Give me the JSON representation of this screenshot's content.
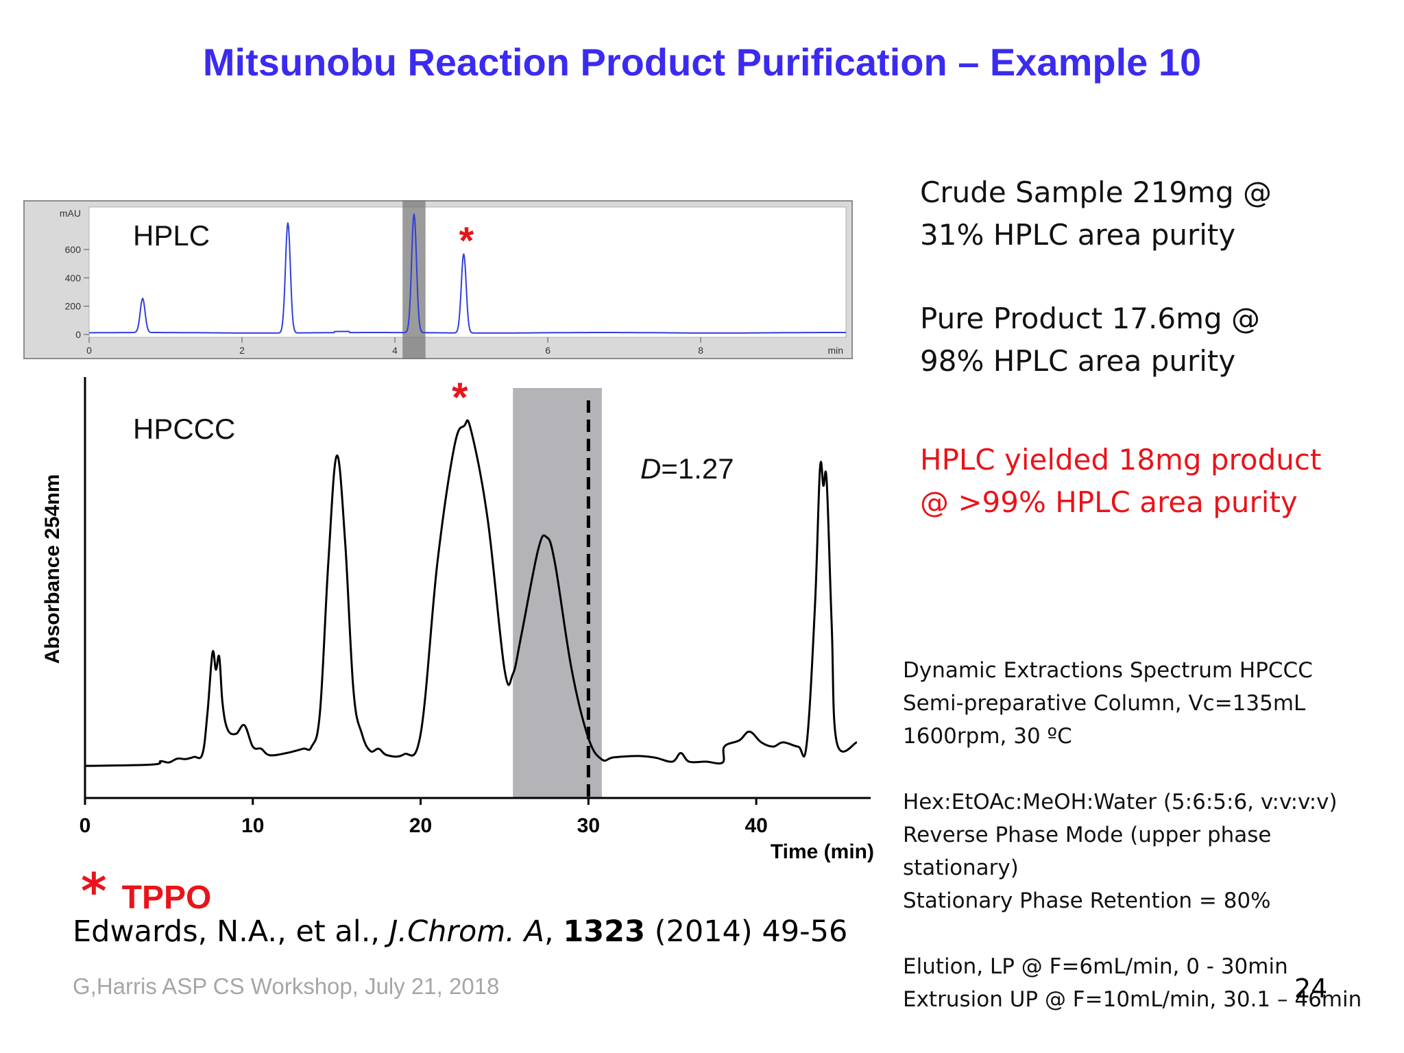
{
  "title": "Mitsunobu Reaction Product Purification – Example 10",
  "summary": {
    "crude_line1": "Crude Sample 219mg @",
    "crude_line2": "31% HPLC area purity",
    "pure_line1": "Pure Product 17.6mg @",
    "pure_line2": "98% HPLC area purity",
    "hplc_line1": "HPLC yielded 18mg product",
    "hplc_line2": "@ >99% HPLC area purity"
  },
  "conditions": [
    "Dynamic Extractions Spectrum HPCCC",
    "Semi-preparative Column, Vc=135mL",
    "1600rpm, 30 ºC",
    "",
    "Hex:EtOAc:MeOH:Water (5:6:5:6, v:v:v:v)",
    "Reverse Phase Mode (upper phase",
    "stationary)",
    "Stationary Phase Retention = 80%",
    "",
    "Elution, LP @ F=6mL/min, 0 - 30min",
    "Extrusion UP @ F=10mL/min, 30.1 – 46min"
  ],
  "legend": {
    "star": "*",
    "label": "TPPO"
  },
  "citation": {
    "authors": "Edwards, N.A., et al., ",
    "journal": "J.Chrom. A",
    "sep": ", ",
    "volume": "1323",
    "rest": " (2014) 49-56"
  },
  "footer": "G,Harris ASP CS Workshop, July 21, 2018",
  "page_number": "24",
  "colors": {
    "title": "#3b2bf0",
    "highlight": "#e8141a",
    "hplc_trace": "#2f3fd8",
    "shade": "#b3b3b8"
  },
  "chart_data": [
    {
      "type": "line",
      "panel_label": "HPLC",
      "ylabel": "mAU",
      "xlabel": "min",
      "x_ticks": [
        0,
        2,
        4,
        6,
        8
      ],
      "y_ticks": [
        0,
        200,
        400,
        600
      ],
      "xlim": [
        0,
        9.9
      ],
      "ylim": [
        -20,
        900
      ],
      "shaded_region": [
        4.1,
        4.4
      ],
      "tppo_marker_x": 4.9,
      "peaks": [
        {
          "x": 0.7,
          "height": 240
        },
        {
          "x": 2.6,
          "height": 780
        },
        {
          "x": 4.25,
          "height": 840
        },
        {
          "x": 4.9,
          "height": 560
        }
      ],
      "baseline": 0
    },
    {
      "type": "line",
      "panel_label": "HPCCC",
      "annotation": "D=1.27",
      "annotation_italic": "D",
      "annotation_rest": "=1.27",
      "xlabel": "Time (min)",
      "ylabel": "Absorbance 254nm",
      "x_ticks": [
        0,
        10,
        20,
        30,
        40
      ],
      "xlim": [
        0,
        46
      ],
      "ylim": [
        0,
        100
      ],
      "shaded_region": [
        25.5,
        30.8
      ],
      "dashed_line_x": 30,
      "tppo_marker_x": 22.5,
      "points": [
        [
          0,
          7.5
        ],
        [
          4,
          7.8
        ],
        [
          4.5,
          8.6
        ],
        [
          5,
          8.3
        ],
        [
          5.5,
          9.2
        ],
        [
          6,
          9.1
        ],
        [
          6.5,
          9.6
        ],
        [
          7,
          10.3
        ],
        [
          7.3,
          20
        ],
        [
          7.6,
          34
        ],
        [
          7.8,
          30
        ],
        [
          8.0,
          33
        ],
        [
          8.2,
          22
        ],
        [
          8.5,
          16
        ],
        [
          9.0,
          15
        ],
        [
          9.5,
          17
        ],
        [
          10,
          12
        ],
        [
          10.5,
          11.5
        ],
        [
          11,
          10
        ],
        [
          12,
          10.5
        ],
        [
          13,
          11.5
        ],
        [
          13.5,
          12
        ],
        [
          14,
          20
        ],
        [
          14.5,
          55
        ],
        [
          15,
          80
        ],
        [
          15.5,
          60
        ],
        [
          16,
          25
        ],
        [
          16.5,
          15
        ],
        [
          17,
          11
        ],
        [
          17.5,
          11.5
        ],
        [
          18,
          10
        ],
        [
          19,
          10.2
        ],
        [
          20,
          15
        ],
        [
          21,
          55
        ],
        [
          22,
          82
        ],
        [
          22.6,
          87
        ],
        [
          23,
          86
        ],
        [
          24,
          65
        ],
        [
          25,
          30
        ],
        [
          25.5,
          29
        ],
        [
          26,
          38
        ],
        [
          27,
          58
        ],
        [
          27.5,
          61
        ],
        [
          28,
          55
        ],
        [
          29,
          30
        ],
        [
          30,
          14
        ],
        [
          30.8,
          9
        ],
        [
          31.5,
          9.5
        ],
        [
          33,
          9.8
        ],
        [
          34,
          9.4
        ],
        [
          35,
          8.5
        ],
        [
          35.5,
          10.5
        ],
        [
          36,
          8.5
        ],
        [
          37,
          8.5
        ],
        [
          38,
          8.3
        ],
        [
          38.1,
          12
        ],
        [
          39,
          13.5
        ],
        [
          39.6,
          15.5
        ],
        [
          40.3,
          13
        ],
        [
          41,
          12
        ],
        [
          41.6,
          13
        ],
        [
          42.5,
          12
        ],
        [
          43,
          12.5
        ],
        [
          43.5,
          45
        ],
        [
          43.8,
          77
        ],
        [
          44.0,
          73
        ],
        [
          44.2,
          74
        ],
        [
          44.5,
          40
        ],
        [
          44.8,
          13
        ],
        [
          46,
          13
        ]
      ]
    }
  ]
}
